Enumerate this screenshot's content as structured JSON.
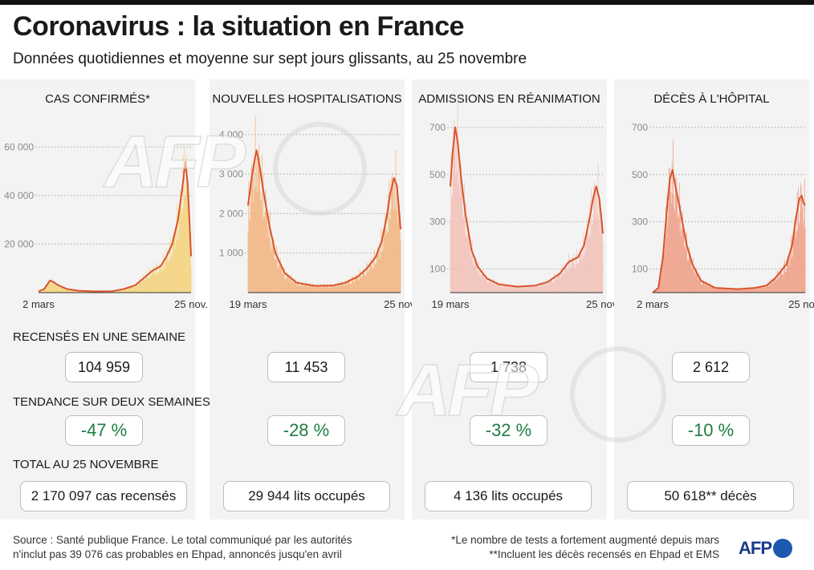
{
  "title": "Coronavirus : la situation en France",
  "subtitle": "Données quotidiennes et moyenne sur sept jours glissants, au 25 novembre",
  "sections": {
    "weekly": "RECENSÉS EN UNE SEMAINE",
    "trend": "TENDANCE SUR DEUX SEMAINES",
    "total": "TOTAL AU 25 NOVEMBRE"
  },
  "panels": [
    {
      "title": "CAS CONFIRMÉS*",
      "weekly": "104 959",
      "trend": "-47 %",
      "total_value": "2 170 097",
      "total_unit": "cas recensés"
    },
    {
      "title": "NOUVELLES HOSPITALISATIONS",
      "weekly": "11 453",
      "trend": "-28 %",
      "total_value": "29 944",
      "total_unit": "lits occupés"
    },
    {
      "title": "ADMISSIONS EN RÉANIMATION",
      "weekly": "1 738",
      "trend": "-32 %",
      "total_value": "4 136",
      "total_unit": "lits occupés"
    },
    {
      "title": "DÉCÈS À L'HÔPITAL",
      "weekly": "2 612",
      "trend": "-10 %",
      "total_value": "50 618**",
      "total_unit": "décès"
    }
  ],
  "chart_data": [
    {
      "type": "bar",
      "title": "CAS CONFIRMÉS*",
      "bar_color": "#f5d27a",
      "line_color": "#d9532b",
      "x_start": "2 mars",
      "x_end": "25 nov.",
      "xticks": [
        {
          "label": "2 mars",
          "t": 0
        },
        {
          "label": "25 nov.",
          "t": 268
        }
      ],
      "yticks": [
        {
          "value": 20000,
          "label": "20 000"
        },
        {
          "value": 40000,
          "label": "40 000"
        },
        {
          "value": 60000,
          "label": "60 000"
        }
      ],
      "ylim": [
        0,
        70000
      ],
      "t_range": [
        0,
        268
      ],
      "moving_average_7d": [
        [
          0,
          500
        ],
        [
          10,
          1500
        ],
        [
          20,
          5000
        ],
        [
          25,
          4500
        ],
        [
          35,
          3000
        ],
        [
          50,
          1500
        ],
        [
          70,
          800
        ],
        [
          100,
          500
        ],
        [
          130,
          600
        ],
        [
          150,
          1500
        ],
        [
          170,
          3000
        ],
        [
          185,
          6000
        ],
        [
          200,
          9000
        ],
        [
          215,
          11000
        ],
        [
          225,
          15000
        ],
        [
          235,
          20000
        ],
        [
          245,
          30000
        ],
        [
          252,
          42000
        ],
        [
          258,
          54000
        ],
        [
          262,
          45000
        ],
        [
          265,
          30000
        ],
        [
          268,
          15000
        ]
      ]
    },
    {
      "type": "bar",
      "title": "NOUVELLES HOSPITALISATIONS",
      "bar_color": "#f2b37c",
      "line_color": "#d9532b",
      "x_start": "19 mars",
      "x_end": "25 nov.",
      "xticks": [
        {
          "label": "19 mars",
          "t": 0
        },
        {
          "label": "25 nov.",
          "t": 251
        }
      ],
      "yticks": [
        {
          "value": 1000,
          "label": "1 000"
        },
        {
          "value": 2000,
          "label": "2 000"
        },
        {
          "value": 3000,
          "label": "3 000"
        },
        {
          "value": 4000,
          "label": "4 000"
        }
      ],
      "ylim": [
        0,
        4300
      ],
      "t_range": [
        0,
        251
      ],
      "moving_average_7d": [
        [
          0,
          2200
        ],
        [
          5,
          2800
        ],
        [
          10,
          3300
        ],
        [
          14,
          3600
        ],
        [
          18,
          3300
        ],
        [
          25,
          2600
        ],
        [
          35,
          1700
        ],
        [
          45,
          1000
        ],
        [
          60,
          500
        ],
        [
          80,
          250
        ],
        [
          110,
          170
        ],
        [
          140,
          180
        ],
        [
          160,
          250
        ],
        [
          180,
          400
        ],
        [
          195,
          600
        ],
        [
          210,
          900
        ],
        [
          220,
          1300
        ],
        [
          228,
          1900
        ],
        [
          234,
          2500
        ],
        [
          240,
          2900
        ],
        [
          245,
          2700
        ],
        [
          251,
          1600
        ]
      ]
    },
    {
      "type": "bar",
      "title": "ADMISSIONS EN RÉANIMATION",
      "bar_color": "#f2bfb6",
      "line_color": "#d9532b",
      "x_start": "19 mars",
      "x_end": "25 nov.",
      "xticks": [
        {
          "label": "19 mars",
          "t": 0
        },
        {
          "label": "25 nov.",
          "t": 251
        }
      ],
      "yticks": [
        {
          "value": 100,
          "label": "100"
        },
        {
          "value": 300,
          "label": "300"
        },
        {
          "value": 500,
          "label": "500"
        },
        {
          "value": 700,
          "label": "700"
        }
      ],
      "ylim": [
        0,
        720
      ],
      "t_range": [
        0,
        251
      ],
      "moving_average_7d": [
        [
          0,
          450
        ],
        [
          4,
          600
        ],
        [
          8,
          700
        ],
        [
          12,
          640
        ],
        [
          18,
          480
        ],
        [
          25,
          330
        ],
        [
          35,
          180
        ],
        [
          45,
          110
        ],
        [
          60,
          60
        ],
        [
          80,
          35
        ],
        [
          110,
          25
        ],
        [
          140,
          30
        ],
        [
          160,
          45
        ],
        [
          180,
          80
        ],
        [
          195,
          130
        ],
        [
          210,
          150
        ],
        [
          220,
          200
        ],
        [
          228,
          300
        ],
        [
          235,
          400
        ],
        [
          240,
          450
        ],
        [
          245,
          400
        ],
        [
          251,
          250
        ]
      ]
    },
    {
      "type": "bar",
      "title": "DÉCÈS À L'HÔPITAL",
      "bar_color": "#ee9f86",
      "line_color": "#d9532b",
      "x_start": "2 mars",
      "x_end": "25 nov.",
      "xticks": [
        {
          "label": "2 mars",
          "t": 0
        },
        {
          "label": "25 nov.",
          "t": 268
        }
      ],
      "yticks": [
        {
          "value": 100,
          "label": "100"
        },
        {
          "value": 300,
          "label": "300"
        },
        {
          "value": 500,
          "label": "500"
        },
        {
          "value": 700,
          "label": "700"
        }
      ],
      "ylim": [
        0,
        720
      ],
      "t_range": [
        0,
        268
      ],
      "moving_average_7d": [
        [
          0,
          0
        ],
        [
          10,
          20
        ],
        [
          18,
          150
        ],
        [
          25,
          350
        ],
        [
          30,
          480
        ],
        [
          35,
          520
        ],
        [
          40,
          450
        ],
        [
          46,
          380
        ],
        [
          52,
          300
        ],
        [
          60,
          200
        ],
        [
          70,
          120
        ],
        [
          85,
          50
        ],
        [
          110,
          20
        ],
        [
          150,
          15
        ],
        [
          180,
          20
        ],
        [
          200,
          30
        ],
        [
          215,
          60
        ],
        [
          225,
          90
        ],
        [
          235,
          120
        ],
        [
          245,
          200
        ],
        [
          252,
          320
        ],
        [
          258,
          400
        ],
        [
          262,
          410
        ],
        [
          265,
          380
        ],
        [
          268,
          370
        ]
      ]
    }
  ],
  "footer": {
    "source_line1": "Source : Santé publique France. Le total communiqué par les autorités",
    "source_line2": "n'inclut pas 39 076 cas probables en Ehpad, annoncés jusqu'en avril",
    "note1": "*Le nombre de tests a fortement augmenté depuis mars",
    "note2": "**Incluent les décès recensés en Ehpad et EMS"
  },
  "logo_text": "AFP",
  "watermark_text": "AFP"
}
